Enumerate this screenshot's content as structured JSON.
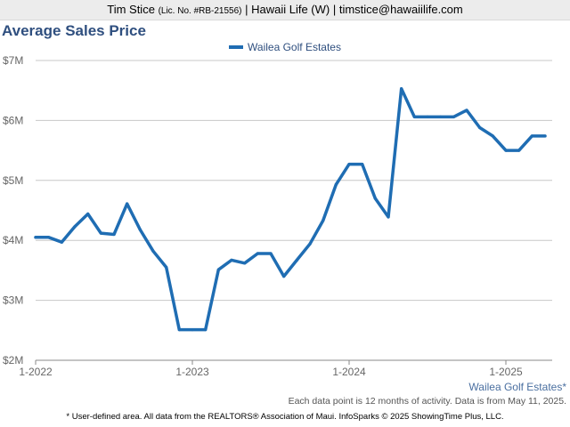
{
  "header": {
    "agent_name": "Tim Stice",
    "license": "(Lic. No. #RB-21556)",
    "rest": "| Hawaii Life (W) | timstice@hawaiilife.com"
  },
  "colors": {
    "series": "#1f6db3",
    "title": "#2f4f7f",
    "grid": "#c8c8c8"
  },
  "chart_data": {
    "type": "line",
    "title": "Average Sales Price",
    "xlabel": "",
    "ylabel": "",
    "legend_position": "top-center",
    "grid": true,
    "ylim": [
      2,
      7
    ],
    "y_ticks": [
      {
        "value": 2,
        "label": "$2M"
      },
      {
        "value": 3,
        "label": "$3M"
      },
      {
        "value": 4,
        "label": "$4M"
      },
      {
        "value": 5,
        "label": "$5M"
      },
      {
        "value": 6,
        "label": "$6M"
      },
      {
        "value": 7,
        "label": "$7M"
      }
    ],
    "x_ticks": [
      {
        "date": "2022-01",
        "label": "1-2022"
      },
      {
        "date": "2023-01",
        "label": "1-2023"
      },
      {
        "date": "2024-01",
        "label": "1-2024"
      },
      {
        "date": "2025-01",
        "label": "1-2025"
      }
    ],
    "x_range": [
      "2022-01",
      "2025-04"
    ],
    "series": [
      {
        "name": "Wailea Golf Estates",
        "x": [
          "2022-01",
          "2022-02",
          "2022-03",
          "2022-04",
          "2022-05",
          "2022-06",
          "2022-07",
          "2022-08",
          "2022-09",
          "2022-10",
          "2022-11",
          "2022-12",
          "2023-01",
          "2023-02",
          "2023-03",
          "2023-04",
          "2023-05",
          "2023-06",
          "2023-07",
          "2023-08",
          "2023-09",
          "2023-10",
          "2023-11",
          "2023-12",
          "2024-01",
          "2024-02",
          "2024-03",
          "2024-04",
          "2024-05",
          "2024-06",
          "2024-07",
          "2024-08",
          "2024-09",
          "2024-10",
          "2024-11",
          "2024-12",
          "2025-01",
          "2025-02",
          "2025-03",
          "2025-04"
        ],
        "values": [
          4.05,
          4.05,
          3.97,
          4.23,
          4.44,
          4.12,
          4.1,
          4.61,
          4.18,
          3.82,
          3.55,
          2.51,
          2.51,
          2.51,
          3.51,
          3.67,
          3.62,
          3.78,
          3.78,
          3.4,
          3.67,
          3.94,
          4.33,
          4.93,
          5.27,
          5.27,
          4.7,
          4.39,
          6.53,
          6.06,
          6.06,
          6.06,
          6.06,
          6.17,
          5.88,
          5.74,
          5.5,
          5.5,
          5.74,
          5.74
        ]
      }
    ]
  },
  "area_label": "Wailea Golf Estates*",
  "note": "Each data point is 12 months of activity. Data is from May 11, 2025.",
  "footer": "* User-defined area. All data from the REALTORS® Association of Maui. InfoSparks © 2025 ShowingTime Plus, LLC."
}
